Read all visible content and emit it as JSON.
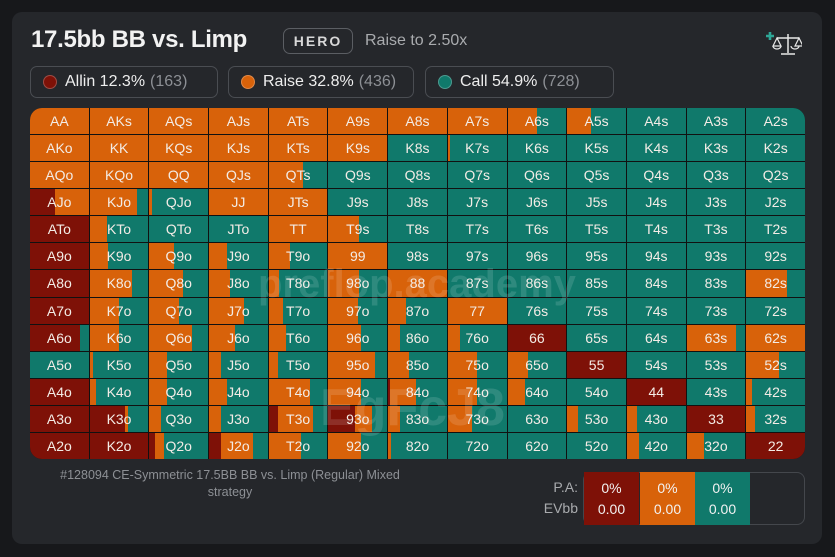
{
  "header": {
    "title": "17.5bb BB vs. Limp",
    "badge": "HERO",
    "subtitle": "Raise to 2.50x",
    "icon": "add-scale-icon"
  },
  "colors": {
    "allin": "#7e1107",
    "raise": "#d8620a",
    "call": "#10796b"
  },
  "legend": [
    {
      "key": "allin",
      "label": "Allin 12.3%",
      "count": "(163)"
    },
    {
      "key": "raise",
      "label": "Raise 32.8%",
      "count": "(436)"
    },
    {
      "key": "call",
      "label": "Call 54.9%",
      "count": "(728)"
    }
  ],
  "watermarks": [
    "preflop.academy",
    "EgFcJ8"
  ],
  "grid": {
    "rows": [
      [
        [
          "AA",
          0,
          100,
          0
        ],
        [
          "AKs",
          0,
          100,
          0
        ],
        [
          "AQs",
          0,
          100,
          0
        ],
        [
          "AJs",
          0,
          100,
          0
        ],
        [
          "ATs",
          0,
          100,
          0
        ],
        [
          "A9s",
          0,
          100,
          0
        ],
        [
          "A8s",
          0,
          100,
          0
        ],
        [
          "A7s",
          0,
          100,
          0
        ],
        [
          "A6s",
          0,
          50,
          50
        ],
        [
          "A5s",
          0,
          40,
          60
        ],
        [
          "A4s",
          0,
          0,
          100
        ],
        [
          "A3s",
          0,
          0,
          100
        ],
        [
          "A2s",
          0,
          0,
          100
        ]
      ],
      [
        [
          "AKo",
          0,
          100,
          0
        ],
        [
          "KK",
          0,
          100,
          0
        ],
        [
          "KQs",
          0,
          100,
          0
        ],
        [
          "KJs",
          0,
          100,
          0
        ],
        [
          "KTs",
          0,
          100,
          0
        ],
        [
          "K9s",
          0,
          100,
          0
        ],
        [
          "K8s",
          0,
          0,
          100
        ],
        [
          "K7s",
          0,
          3,
          97
        ],
        [
          "K6s",
          0,
          0,
          100
        ],
        [
          "K5s",
          0,
          0,
          100
        ],
        [
          "K4s",
          0,
          0,
          100
        ],
        [
          "K3s",
          0,
          0,
          100
        ],
        [
          "K2s",
          0,
          0,
          100
        ]
      ],
      [
        [
          "AQo",
          0,
          100,
          0
        ],
        [
          "KQo",
          0,
          100,
          0
        ],
        [
          "QQ",
          0,
          100,
          0
        ],
        [
          "QJs",
          0,
          100,
          0
        ],
        [
          "QTs",
          0,
          58,
          42
        ],
        [
          "Q9s",
          0,
          0,
          100
        ],
        [
          "Q8s",
          0,
          0,
          100
        ],
        [
          "Q7s",
          0,
          0,
          100
        ],
        [
          "Q6s",
          0,
          0,
          100
        ],
        [
          "Q5s",
          0,
          0,
          100
        ],
        [
          "Q4s",
          0,
          0,
          100
        ],
        [
          "Q3s",
          0,
          0,
          100
        ],
        [
          "Q2s",
          0,
          0,
          100
        ]
      ],
      [
        [
          "AJo",
          42,
          58,
          0
        ],
        [
          "KJo",
          0,
          80,
          20
        ],
        [
          "QJo",
          0,
          5,
          95
        ],
        [
          "JJ",
          0,
          100,
          0
        ],
        [
          "JTs",
          0,
          100,
          0
        ],
        [
          "J9s",
          0,
          0,
          100
        ],
        [
          "J8s",
          0,
          0,
          100
        ],
        [
          "J7s",
          0,
          0,
          100
        ],
        [
          "J6s",
          0,
          0,
          100
        ],
        [
          "J5s",
          0,
          0,
          100
        ],
        [
          "J4s",
          0,
          0,
          100
        ],
        [
          "J3s",
          0,
          0,
          100
        ],
        [
          "J2s",
          0,
          0,
          100
        ]
      ],
      [
        [
          "ATo",
          100,
          0,
          0
        ],
        [
          "KTo",
          0,
          30,
          70
        ],
        [
          "QTo",
          0,
          0,
          100
        ],
        [
          "JTo",
          0,
          0,
          100
        ],
        [
          "TT",
          0,
          100,
          0
        ],
        [
          "T9s",
          0,
          52,
          48
        ],
        [
          "T8s",
          0,
          0,
          100
        ],
        [
          "T7s",
          0,
          0,
          100
        ],
        [
          "T6s",
          0,
          0,
          100
        ],
        [
          "T5s",
          0,
          0,
          100
        ],
        [
          "T4s",
          0,
          0,
          100
        ],
        [
          "T3s",
          0,
          0,
          100
        ],
        [
          "T2s",
          0,
          0,
          100
        ]
      ],
      [
        [
          "A9o",
          100,
          0,
          0
        ],
        [
          "K9o",
          0,
          32,
          68
        ],
        [
          "Q9o",
          0,
          42,
          58
        ],
        [
          "J9o",
          0,
          30,
          70
        ],
        [
          "T9o",
          0,
          37,
          63
        ],
        [
          "99",
          0,
          100,
          0
        ],
        [
          "98s",
          0,
          0,
          100
        ],
        [
          "97s",
          0,
          0,
          100
        ],
        [
          "96s",
          0,
          0,
          100
        ],
        [
          "95s",
          0,
          0,
          100
        ],
        [
          "94s",
          0,
          0,
          100
        ],
        [
          "93s",
          0,
          0,
          100
        ],
        [
          "92s",
          0,
          0,
          100
        ]
      ],
      [
        [
          "A8o",
          100,
          0,
          0
        ],
        [
          "K8o",
          0,
          72,
          28
        ],
        [
          "Q8o",
          0,
          58,
          42
        ],
        [
          "J8o",
          0,
          35,
          65
        ],
        [
          "T8o",
          0,
          17,
          83
        ],
        [
          "98o",
          0,
          52,
          48
        ],
        [
          "88",
          0,
          100,
          0
        ],
        [
          "87s",
          0,
          0,
          100
        ],
        [
          "86s",
          0,
          0,
          100
        ],
        [
          "85s",
          0,
          0,
          100
        ],
        [
          "84s",
          0,
          0,
          100
        ],
        [
          "83s",
          0,
          0,
          100
        ],
        [
          "82s",
          0,
          70,
          30
        ]
      ],
      [
        [
          "A7o",
          100,
          0,
          0
        ],
        [
          "K7o",
          0,
          50,
          50
        ],
        [
          "Q7o",
          0,
          50,
          50
        ],
        [
          "J7o",
          0,
          60,
          40
        ],
        [
          "T7o",
          0,
          25,
          75
        ],
        [
          "97o",
          0,
          50,
          50
        ],
        [
          "87o",
          0,
          30,
          70
        ],
        [
          "77",
          0,
          100,
          0
        ],
        [
          "76s",
          0,
          0,
          100
        ],
        [
          "75s",
          0,
          0,
          100
        ],
        [
          "74s",
          0,
          0,
          100
        ],
        [
          "73s",
          0,
          0,
          100
        ],
        [
          "72s",
          0,
          0,
          100
        ]
      ],
      [
        [
          "A6o",
          85,
          0,
          15
        ],
        [
          "K6o",
          0,
          50,
          50
        ],
        [
          "Q6o",
          0,
          72,
          28
        ],
        [
          "J6o",
          0,
          45,
          55
        ],
        [
          "T6o",
          0,
          30,
          70
        ],
        [
          "96o",
          0,
          55,
          45
        ],
        [
          "86o",
          0,
          20,
          80
        ],
        [
          "76o",
          0,
          20,
          80
        ],
        [
          "66",
          100,
          0,
          0
        ],
        [
          "65s",
          0,
          0,
          100
        ],
        [
          "64s",
          0,
          0,
          100
        ],
        [
          "63s",
          0,
          85,
          15
        ],
        [
          "62s",
          0,
          100,
          0
        ]
      ],
      [
        [
          "A5o",
          0,
          0,
          100
        ],
        [
          "K5o",
          0,
          5,
          95
        ],
        [
          "Q5o",
          0,
          30,
          70
        ],
        [
          "J5o",
          0,
          20,
          80
        ],
        [
          "T5o",
          0,
          15,
          85
        ],
        [
          "95o",
          0,
          80,
          20
        ],
        [
          "85o",
          0,
          35,
          65
        ],
        [
          "75o",
          0,
          50,
          50
        ],
        [
          "65o",
          0,
          35,
          65
        ],
        [
          "55",
          100,
          0,
          0
        ],
        [
          "54s",
          0,
          0,
          100
        ],
        [
          "53s",
          0,
          0,
          100
        ],
        [
          "52s",
          0,
          55,
          45
        ]
      ],
      [
        [
          "A4o",
          100,
          0,
          0
        ],
        [
          "K4o",
          0,
          10,
          90
        ],
        [
          "Q4o",
          0,
          30,
          70
        ],
        [
          "J4o",
          0,
          30,
          70
        ],
        [
          "T4o",
          0,
          70,
          30
        ],
        [
          "94o",
          0,
          55,
          45
        ],
        [
          "84o",
          3,
          45,
          52
        ],
        [
          "74o",
          0,
          50,
          50
        ],
        [
          "64o",
          0,
          30,
          70
        ],
        [
          "54o",
          0,
          0,
          100
        ],
        [
          "44",
          100,
          0,
          0
        ],
        [
          "43s",
          0,
          0,
          100
        ],
        [
          "42s",
          0,
          10,
          90
        ]
      ],
      [
        [
          "A3o",
          100,
          0,
          0
        ],
        [
          "K3o",
          60,
          5,
          35
        ],
        [
          "Q3o",
          0,
          20,
          80
        ],
        [
          "J3o",
          0,
          20,
          80
        ],
        [
          "T3o",
          15,
          60,
          25
        ],
        [
          "93o",
          45,
          30,
          25
        ],
        [
          "83o",
          0,
          20,
          80
        ],
        [
          "73o",
          0,
          42,
          58
        ],
        [
          "63o",
          0,
          0,
          100
        ],
        [
          "53o",
          0,
          18,
          82
        ],
        [
          "43o",
          0,
          18,
          82
        ],
        [
          "33",
          100,
          0,
          0
        ],
        [
          "32s",
          0,
          15,
          85
        ]
      ],
      [
        [
          "A2o",
          100,
          0,
          0
        ],
        [
          "K2o",
          100,
          0,
          0
        ],
        [
          "Q2o",
          10,
          15,
          75
        ],
        [
          "J2o",
          20,
          55,
          25
        ],
        [
          "T2o",
          0,
          55,
          45
        ],
        [
          "92o",
          0,
          55,
          45
        ],
        [
          "82o",
          0,
          5,
          95
        ],
        [
          "72o",
          0,
          0,
          100
        ],
        [
          "62o",
          0,
          0,
          100
        ],
        [
          "52o",
          0,
          0,
          100
        ],
        [
          "42o",
          0,
          20,
          80
        ],
        [
          "32o",
          0,
          30,
          70
        ],
        [
          "22",
          100,
          0,
          0
        ]
      ]
    ]
  },
  "footer": {
    "description": "#128094 CE-Symmetric 17.5BB BB vs. Limp (Regular) Mixed strategy",
    "pa_label": "P.A:",
    "ev_label": "EVbb",
    "stats": [
      {
        "key": "allin",
        "pa": "0%",
        "ev": "0.00"
      },
      {
        "key": "raise",
        "pa": "0%",
        "ev": "0.00"
      },
      {
        "key": "call",
        "pa": "0%",
        "ev": "0.00"
      }
    ]
  }
}
